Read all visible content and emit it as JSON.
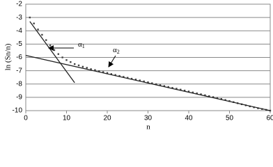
{
  "chart_data": {
    "type": "line",
    "xlabel": "n",
    "ylabel": "ln (Sn/n)",
    "xlim": [
      0,
      60
    ],
    "ylim": [
      -10,
      -2
    ],
    "xticks": [
      0,
      10,
      20,
      30,
      40,
      50,
      60
    ],
    "yticks": [
      -10,
      -9,
      -8,
      -7,
      -6,
      -5,
      -4,
      -3,
      -2
    ],
    "grid": true,
    "series": [
      {
        "color": "#444444",
        "style": "dotted",
        "x": [
          1,
          2,
          3,
          4,
          5,
          6,
          7,
          8,
          9,
          10,
          11,
          12,
          13,
          14,
          15,
          16,
          17,
          18,
          19,
          20,
          21,
          22,
          23,
          24,
          25,
          26,
          27,
          28,
          29,
          30,
          31,
          32,
          33,
          34,
          35,
          36,
          37,
          38,
          39,
          40,
          41,
          42,
          43,
          44,
          45,
          46,
          47,
          48,
          49,
          50,
          51,
          52,
          53,
          54,
          55,
          56,
          57,
          58,
          59,
          60
        ],
        "values": [
          -3.0,
          -3.45,
          -3.9,
          -4.3,
          -4.7,
          -5.1,
          -5.45,
          -5.75,
          -6.0,
          -6.2,
          -6.35,
          -6.5,
          -6.6,
          -6.7,
          -6.78,
          -6.88,
          -6.95,
          -7.03,
          -7.1,
          -7.17,
          -7.25,
          -7.32,
          -7.39,
          -7.46,
          -7.53,
          -7.6,
          -7.66,
          -7.73,
          -7.8,
          -7.87,
          -7.94,
          -8.01,
          -8.08,
          -8.15,
          -8.22,
          -8.29,
          -8.35,
          -8.42,
          -8.49,
          -8.56,
          -8.63,
          -8.7,
          -8.77,
          -8.84,
          -8.91,
          -8.98,
          -9.05,
          -9.12,
          -9.2,
          -9.28,
          -9.36,
          -9.44,
          -9.52,
          -9.6,
          -9.68,
          -9.75,
          -9.82,
          -9.88,
          -9.94,
          -10.0
        ]
      },
      {
        "color": "#222222",
        "style": "solid",
        "x": [
          1,
          12
        ],
        "values": [
          -3.3,
          -7.9
        ]
      },
      {
        "color": "#222222",
        "style": "solid",
        "x": [
          0,
          60
        ],
        "values": [
          -5.85,
          -10.0
        ]
      }
    ],
    "annotations": [
      {
        "symbol": "α",
        "subscript": "1"
      },
      {
        "symbol": "α",
        "subscript": "2"
      }
    ]
  }
}
